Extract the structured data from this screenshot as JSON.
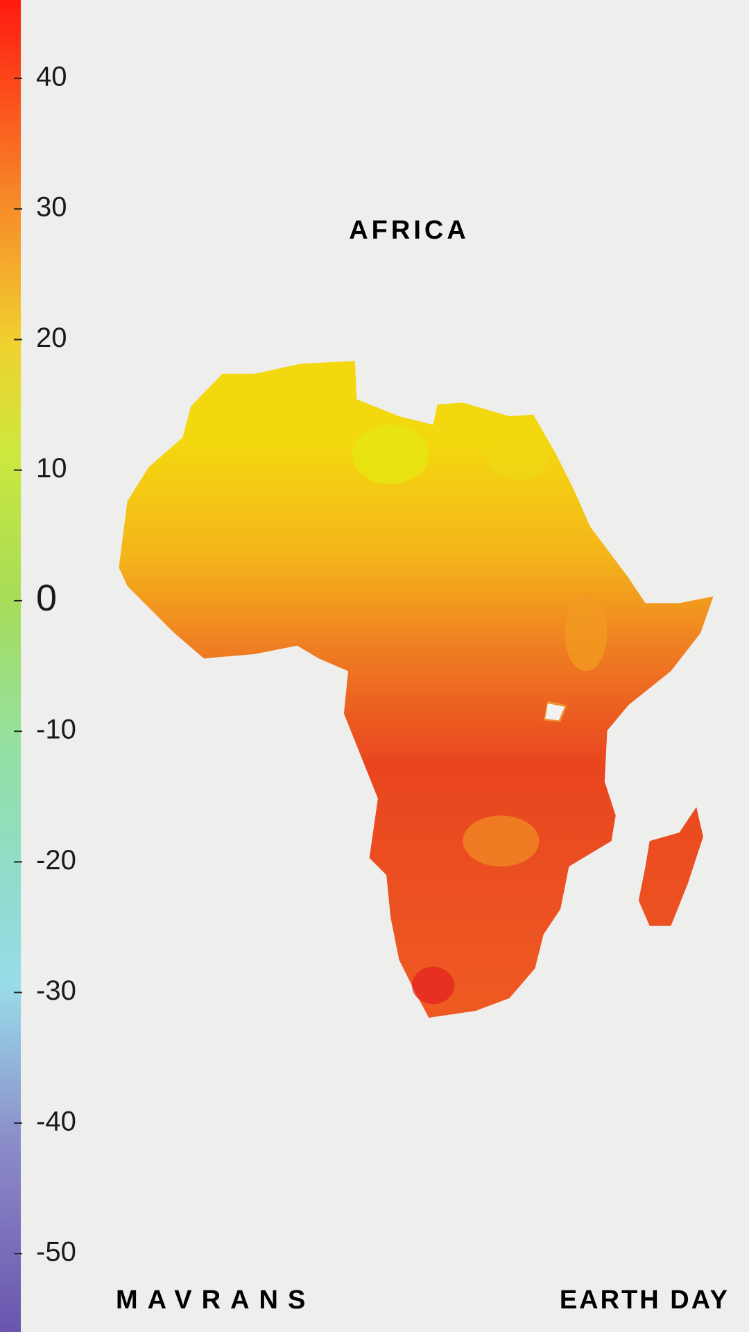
{
  "title": "AFRICA",
  "scale": {
    "lim": [
      -56,
      46
    ],
    "ticks": [
      40,
      30,
      20,
      10,
      0,
      -10,
      -20,
      -30,
      -40,
      -50
    ]
  },
  "footer": {
    "left": "MAVRANS",
    "right": "EARTH DAY"
  }
}
